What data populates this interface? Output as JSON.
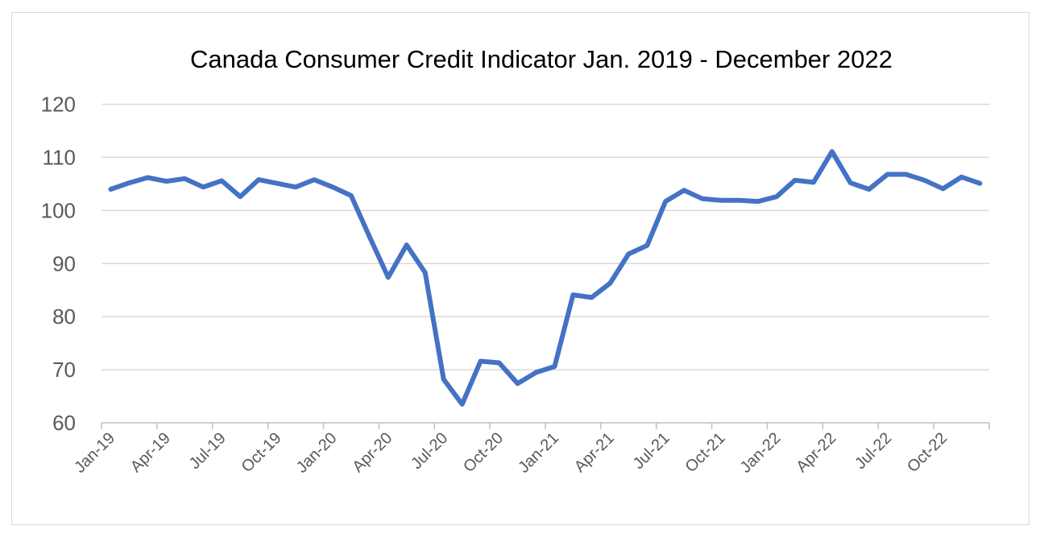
{
  "chart_data": {
    "type": "line",
    "title": "Canada Consumer Credit Indicator Jan. 2019 - December 2022",
    "xlabel": "",
    "ylabel": "",
    "ylim": [
      60,
      120
    ],
    "yticks": [
      "60",
      "70",
      "80",
      "90",
      "100",
      "110",
      "120"
    ],
    "grid": true,
    "legend": "none",
    "x_tick_labels": [
      "Jan-19",
      "Apr-19",
      "Jul-19",
      "Oct-19",
      "Jan-20",
      "Apr-20",
      "Jul-20",
      "Oct-20",
      "Jan-21",
      "Apr-21",
      "Jul-21",
      "Oct-21",
      "Jan-22",
      "Apr-22",
      "Jul-22",
      "Oct-22"
    ],
    "x": [
      "Jan-19",
      "Feb-19",
      "Mar-19",
      "Apr-19",
      "May-19",
      "Jun-19",
      "Jul-19",
      "Aug-19",
      "Sep-19",
      "Oct-19",
      "Nov-19",
      "Dec-19",
      "Jan-20",
      "Feb-20",
      "Mar-20",
      "Apr-20",
      "May-20",
      "Jun-20",
      "Jul-20",
      "Aug-20",
      "Sep-20",
      "Oct-20",
      "Nov-20",
      "Dec-20",
      "Jan-21",
      "Feb-21",
      "Mar-21",
      "Apr-21",
      "May-21",
      "Jun-21",
      "Jul-21",
      "Aug-21",
      "Sep-21",
      "Oct-21",
      "Nov-21",
      "Dec-21",
      "Jan-22",
      "Feb-22",
      "Mar-22",
      "Apr-22",
      "May-22",
      "Jun-22",
      "Jul-22",
      "Aug-22",
      "Sep-22",
      "Oct-22",
      "Nov-22",
      "Dec-22"
    ],
    "series": [
      {
        "color": "#4472c4",
        "values": [
          104.0,
          105.2,
          106.2,
          105.5,
          106.0,
          104.4,
          105.6,
          102.6,
          105.8,
          105.1,
          104.4,
          105.8,
          104.4,
          102.8,
          95.0,
          87.4,
          93.5,
          88.3,
          68.2,
          63.5,
          71.6,
          71.3,
          67.4,
          69.5,
          70.6,
          84.1,
          83.6,
          86.3,
          91.8,
          93.4,
          101.7,
          103.8,
          102.2,
          101.9,
          101.9,
          101.7,
          102.6,
          105.7,
          105.3,
          111.1,
          105.2,
          104.0,
          106.8,
          106.8,
          105.7,
          104.1,
          106.3,
          105.1
        ]
      }
    ]
  }
}
